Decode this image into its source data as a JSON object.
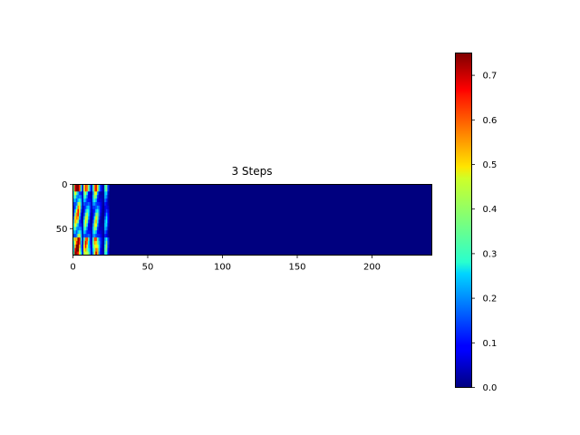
{
  "chart_data": {
    "type": "heatmap",
    "title": "3 Steps",
    "xlabel": "",
    "ylabel": "",
    "colormap": "jet",
    "grid": false,
    "x_range": [
      0,
      240
    ],
    "y_range": [
      0,
      80
    ],
    "y_inverted": true,
    "x_ticks": [
      0,
      50,
      100,
      150,
      200
    ],
    "y_ticks": [
      0,
      50
    ],
    "active_columns_range": [
      0,
      24
    ],
    "column_profile": [
      0.3,
      0.55,
      0.6,
      0.7,
      0.5,
      0.25,
      0.05,
      0.35,
      0.5,
      0.45,
      0.3,
      0.15,
      0.05,
      0.25,
      0.45,
      0.55,
      0.4,
      0.2,
      0.1,
      0.05,
      0.02,
      0.25,
      0.3,
      0.1
    ],
    "row_note": "hot band near top rows and bottom rows (about rows 60-80) of the active columns; all other cells 0.0",
    "colorbar": {
      "min": 0.0,
      "max": 0.75,
      "ticks": [
        0.0,
        0.1,
        0.2,
        0.3,
        0.4,
        0.5,
        0.6,
        0.7
      ]
    }
  }
}
